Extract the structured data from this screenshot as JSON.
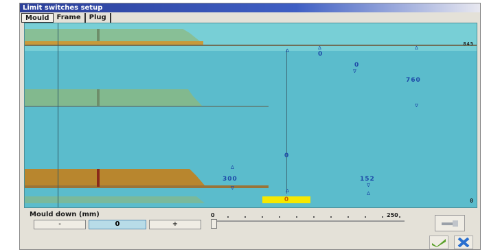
{
  "window": {
    "title": "Limit switches setup"
  },
  "tabs": [
    {
      "label": "Mould",
      "active": true
    },
    {
      "label": "Frame",
      "active": false
    },
    {
      "label": "Plug",
      "active": false
    }
  ],
  "canvas": {
    "top_right_value": "845",
    "bottom_right_value": "0",
    "labels": {
      "a": "0",
      "b": "0",
      "c": "760",
      "d": "0",
      "e": "300",
      "f": "152",
      "g": "0"
    }
  },
  "controls": {
    "label": "Mould down (mm)",
    "minus": "-",
    "value": "0",
    "plus": "+",
    "slider_min": "0",
    "slider_max": "250",
    "slider_fraction": 0.0
  },
  "colors": {
    "background": "#5bbccc",
    "mould": "#b8862e",
    "mould_faded": "#8fb87a",
    "highlight": "#f6e800"
  },
  "icons": {
    "side_button": "tool-icon",
    "confirm": "checkmark-icon",
    "cancel": "close-icon"
  }
}
